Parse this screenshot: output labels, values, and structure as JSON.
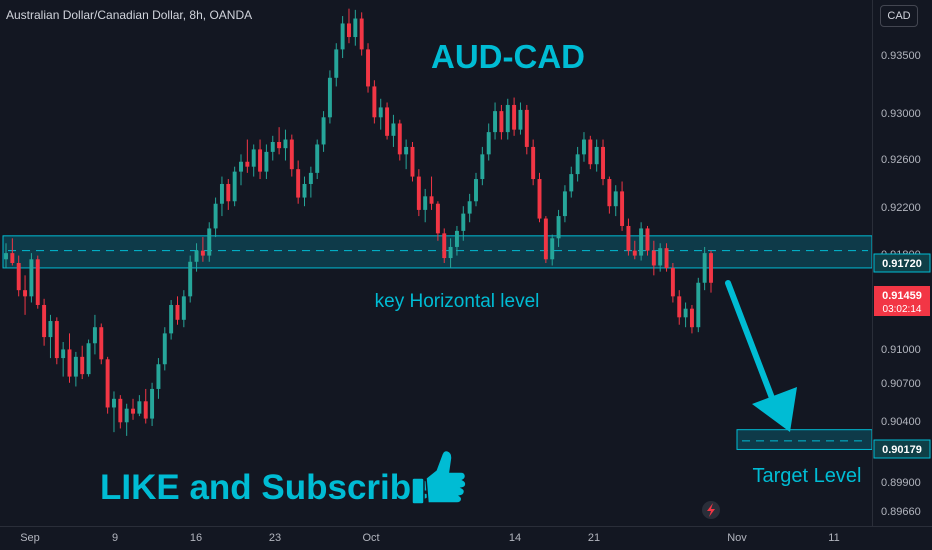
{
  "header": {
    "symbol_line": "Australian Dollar/Canadian Dollar, 8h, OANDA",
    "currency_button": "CAD"
  },
  "annotations": {
    "title": "AUD-CAD",
    "zone_label": "key Horizontal level",
    "cta": "LIKE and Subscribe",
    "target_label": "Target Level"
  },
  "colors": {
    "background": "#131722",
    "bull": "#26a69a",
    "bear": "#f23645",
    "accent": "#00bcd4",
    "zone_fill": "rgba(0,188,212,0.22)",
    "axis_text": "#b2b5be"
  },
  "chart_data": {
    "type": "candlestick",
    "title": "Australian Dollar/Canadian Dollar, 8h, OANDA",
    "y_axis_ticks": [
      "0.93500",
      "0.93000",
      "0.92600",
      "0.92200",
      "0.91800",
      "0.91000",
      "0.90700",
      "0.90400",
      "0.89900",
      "0.89660"
    ],
    "x_axis_ticks": [
      "Sep",
      "9",
      "16",
      "23",
      "Oct",
      "14",
      "21",
      "Nov",
      "11"
    ],
    "price_labels": [
      {
        "value": "0.91720",
        "style": "zone"
      },
      {
        "value": "0.91459",
        "style": "current",
        "countdown": "03:02:14"
      },
      {
        "value": "0.90179",
        "style": "target"
      }
    ],
    "key_zone": {
      "low": 0.9158,
      "high": 0.9184,
      "dashed_at": 0.9172
    },
    "target_zone": {
      "low": 0.9011,
      "high": 0.9027,
      "dashed_at": 0.90179
    },
    "ylim": [
      0.8949,
      0.9375
    ],
    "ohlc": [
      [
        0.9165,
        0.9178,
        0.9158,
        0.917
      ],
      [
        0.917,
        0.9182,
        0.916,
        0.9162
      ],
      [
        0.9162,
        0.9168,
        0.9135,
        0.914
      ],
      [
        0.914,
        0.9152,
        0.912,
        0.9135
      ],
      [
        0.9135,
        0.917,
        0.913,
        0.9165
      ],
      [
        0.9165,
        0.9168,
        0.9125,
        0.9128
      ],
      [
        0.9128,
        0.9133,
        0.9095,
        0.9102
      ],
      [
        0.9102,
        0.912,
        0.9085,
        0.9115
      ],
      [
        0.9115,
        0.9118,
        0.908,
        0.9085
      ],
      [
        0.9085,
        0.9098,
        0.907,
        0.9092
      ],
      [
        0.9092,
        0.9105,
        0.9065,
        0.907
      ],
      [
        0.907,
        0.909,
        0.9062,
        0.9086
      ],
      [
        0.9086,
        0.9095,
        0.9068,
        0.9072
      ],
      [
        0.9072,
        0.91,
        0.907,
        0.9097
      ],
      [
        0.9097,
        0.912,
        0.9088,
        0.911
      ],
      [
        0.911,
        0.9113,
        0.908,
        0.9084
      ],
      [
        0.9084,
        0.9086,
        0.904,
        0.9045
      ],
      [
        0.9045,
        0.9058,
        0.9025,
        0.9052
      ],
      [
        0.9052,
        0.9055,
        0.9028,
        0.9033
      ],
      [
        0.9033,
        0.9048,
        0.9022,
        0.9044
      ],
      [
        0.9044,
        0.9052,
        0.9035,
        0.904
      ],
      [
        0.904,
        0.9055,
        0.9038,
        0.905
      ],
      [
        0.905,
        0.906,
        0.9032,
        0.9036
      ],
      [
        0.9036,
        0.9065,
        0.903,
        0.906
      ],
      [
        0.906,
        0.9085,
        0.9052,
        0.908
      ],
      [
        0.908,
        0.911,
        0.9075,
        0.9105
      ],
      [
        0.9105,
        0.9132,
        0.91,
        0.9128
      ],
      [
        0.9128,
        0.9135,
        0.9112,
        0.9116
      ],
      [
        0.9116,
        0.914,
        0.911,
        0.9135
      ],
      [
        0.9135,
        0.9168,
        0.913,
        0.9163
      ],
      [
        0.9163,
        0.9178,
        0.9155,
        0.9172
      ],
      [
        0.9172,
        0.9183,
        0.9163,
        0.9168
      ],
      [
        0.9168,
        0.9195,
        0.9163,
        0.919
      ],
      [
        0.919,
        0.9215,
        0.9183,
        0.921
      ],
      [
        0.921,
        0.9232,
        0.92,
        0.9226
      ],
      [
        0.9226,
        0.923,
        0.9205,
        0.9212
      ],
      [
        0.9212,
        0.924,
        0.9208,
        0.9236
      ],
      [
        0.9236,
        0.925,
        0.9225,
        0.9244
      ],
      [
        0.9244,
        0.9262,
        0.9235,
        0.924
      ],
      [
        0.924,
        0.9258,
        0.9232,
        0.9254
      ],
      [
        0.9254,
        0.9262,
        0.923,
        0.9236
      ],
      [
        0.9236,
        0.9258,
        0.923,
        0.9252
      ],
      [
        0.9252,
        0.9265,
        0.9245,
        0.926
      ],
      [
        0.926,
        0.9272,
        0.925,
        0.9255
      ],
      [
        0.9255,
        0.927,
        0.9245,
        0.9262
      ],
      [
        0.9262,
        0.9266,
        0.9232,
        0.9238
      ],
      [
        0.9238,
        0.9245,
        0.921,
        0.9215
      ],
      [
        0.9215,
        0.9232,
        0.9208,
        0.9226
      ],
      [
        0.9226,
        0.924,
        0.9215,
        0.9235
      ],
      [
        0.9235,
        0.9262,
        0.923,
        0.9258
      ],
      [
        0.9258,
        0.9285,
        0.9252,
        0.928
      ],
      [
        0.928,
        0.9318,
        0.9275,
        0.9312
      ],
      [
        0.9312,
        0.934,
        0.9305,
        0.9335
      ],
      [
        0.9335,
        0.9362,
        0.9328,
        0.9356
      ],
      [
        0.9356,
        0.9368,
        0.934,
        0.9345
      ],
      [
        0.9345,
        0.9367,
        0.9338,
        0.936
      ],
      [
        0.936,
        0.9365,
        0.933,
        0.9335
      ],
      [
        0.9335,
        0.934,
        0.93,
        0.9305
      ],
      [
        0.9305,
        0.931,
        0.9275,
        0.928
      ],
      [
        0.928,
        0.9295,
        0.927,
        0.9288
      ],
      [
        0.9288,
        0.9292,
        0.9262,
        0.9265
      ],
      [
        0.9265,
        0.9282,
        0.9256,
        0.9275
      ],
      [
        0.9275,
        0.9278,
        0.9245,
        0.925
      ],
      [
        0.925,
        0.9262,
        0.9238,
        0.9256
      ],
      [
        0.9256,
        0.926,
        0.9228,
        0.9232
      ],
      [
        0.9232,
        0.9238,
        0.92,
        0.9205
      ],
      [
        0.9205,
        0.9222,
        0.9195,
        0.9216
      ],
      [
        0.9216,
        0.9232,
        0.9205,
        0.921
      ],
      [
        0.921,
        0.9212,
        0.918,
        0.9186
      ],
      [
        0.9186,
        0.919,
        0.9162,
        0.9166
      ],
      [
        0.9166,
        0.9182,
        0.9158,
        0.9175
      ],
      [
        0.9175,
        0.9192,
        0.9168,
        0.9188
      ],
      [
        0.9188,
        0.9208,
        0.918,
        0.9202
      ],
      [
        0.9202,
        0.9218,
        0.9195,
        0.9212
      ],
      [
        0.9212,
        0.9235,
        0.9208,
        0.923
      ],
      [
        0.923,
        0.9256,
        0.9225,
        0.925
      ],
      [
        0.925,
        0.9275,
        0.9245,
        0.9268
      ],
      [
        0.9268,
        0.9292,
        0.9262,
        0.9285
      ],
      [
        0.9285,
        0.929,
        0.9262,
        0.9268
      ],
      [
        0.9268,
        0.9295,
        0.9262,
        0.929
      ],
      [
        0.929,
        0.9296,
        0.9265,
        0.927
      ],
      [
        0.927,
        0.9292,
        0.9266,
        0.9286
      ],
      [
        0.9286,
        0.929,
        0.925,
        0.9256
      ],
      [
        0.9256,
        0.9262,
        0.9225,
        0.923
      ],
      [
        0.923,
        0.9235,
        0.9195,
        0.9198
      ],
      [
        0.9198,
        0.92,
        0.9162,
        0.9165
      ],
      [
        0.9165,
        0.9185,
        0.916,
        0.9182
      ],
      [
        0.9182,
        0.9205,
        0.9175,
        0.92
      ],
      [
        0.92,
        0.9225,
        0.9195,
        0.922
      ],
      [
        0.922,
        0.924,
        0.9215,
        0.9234
      ],
      [
        0.9234,
        0.9256,
        0.9228,
        0.925
      ],
      [
        0.925,
        0.9268,
        0.9244,
        0.9262
      ],
      [
        0.9262,
        0.9265,
        0.9238,
        0.9242
      ],
      [
        0.9242,
        0.9262,
        0.9236,
        0.9256
      ],
      [
        0.9256,
        0.9262,
        0.9225,
        0.923
      ],
      [
        0.923,
        0.9232,
        0.9202,
        0.9208
      ],
      [
        0.9208,
        0.9225,
        0.92,
        0.922
      ],
      [
        0.922,
        0.9228,
        0.9188,
        0.9192
      ],
      [
        0.9192,
        0.9198,
        0.9168,
        0.9172
      ],
      [
        0.9172,
        0.918,
        0.9165,
        0.9168
      ],
      [
        0.9168,
        0.9195,
        0.9164,
        0.919
      ],
      [
        0.919,
        0.9192,
        0.9168,
        0.9172
      ],
      [
        0.9172,
        0.918,
        0.9152,
        0.916
      ],
      [
        0.916,
        0.9178,
        0.9155,
        0.9174
      ],
      [
        0.9174,
        0.9178,
        0.9155,
        0.9158
      ],
      [
        0.9158,
        0.9162,
        0.913,
        0.9135
      ],
      [
        0.9135,
        0.914,
        0.9112,
        0.9118
      ],
      [
        0.9118,
        0.913,
        0.911,
        0.9125
      ],
      [
        0.9125,
        0.9128,
        0.9105,
        0.911
      ],
      [
        0.911,
        0.915,
        0.9106,
        0.9146
      ],
      [
        0.9146,
        0.9175,
        0.914,
        0.917
      ],
      [
        0.917,
        0.9172,
        0.9138,
        0.9146
      ]
    ]
  }
}
